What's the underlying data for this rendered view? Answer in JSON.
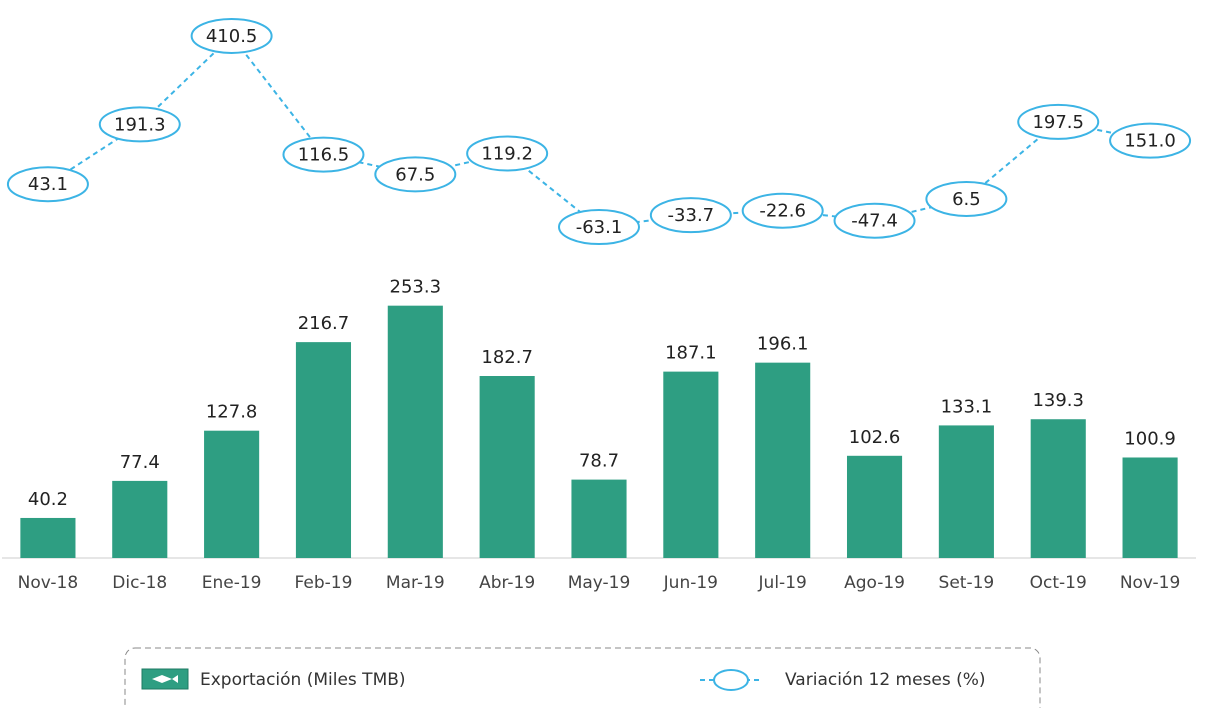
{
  "chart_data": {
    "type": "bar",
    "categories": [
      "Nov-18",
      "Dic-18",
      "Ene-19",
      "Feb-19",
      "Mar-19",
      "Abr-19",
      "May-19",
      "Jun-19",
      "Jul-19",
      "Ago-19",
      "Set-19",
      "Oct-19",
      "Nov-19"
    ],
    "series": [
      {
        "name": "Exportación (Miles TMB)",
        "color": "#2e9e82",
        "values": [
          40.2,
          77.4,
          127.8,
          216.7,
          253.3,
          182.7,
          78.7,
          187.1,
          196.1,
          102.6,
          133.1,
          139.3,
          100.9
        ]
      },
      {
        "name": "Variación 12 meses (%)",
        "color": "#3cb4e5",
        "axis": "y2",
        "values": [
          43.1,
          191.3,
          410.5,
          116.5,
          67.5,
          119.2,
          -63.1,
          -33.7,
          -22.6,
          -47.4,
          6.5,
          197.5,
          151.0
        ],
        "value_labels": [
          "43.1",
          "191.3",
          "410.5",
          "116.5",
          "67.5",
          "119.2",
          "-63.1",
          "-33.7",
          "-22.6",
          "-47.4",
          "6.5",
          "197.5",
          "151.0"
        ]
      }
    ],
    "ylim": [
      0,
      260
    ],
    "y2lim": [
      -120,
      450
    ]
  }
}
